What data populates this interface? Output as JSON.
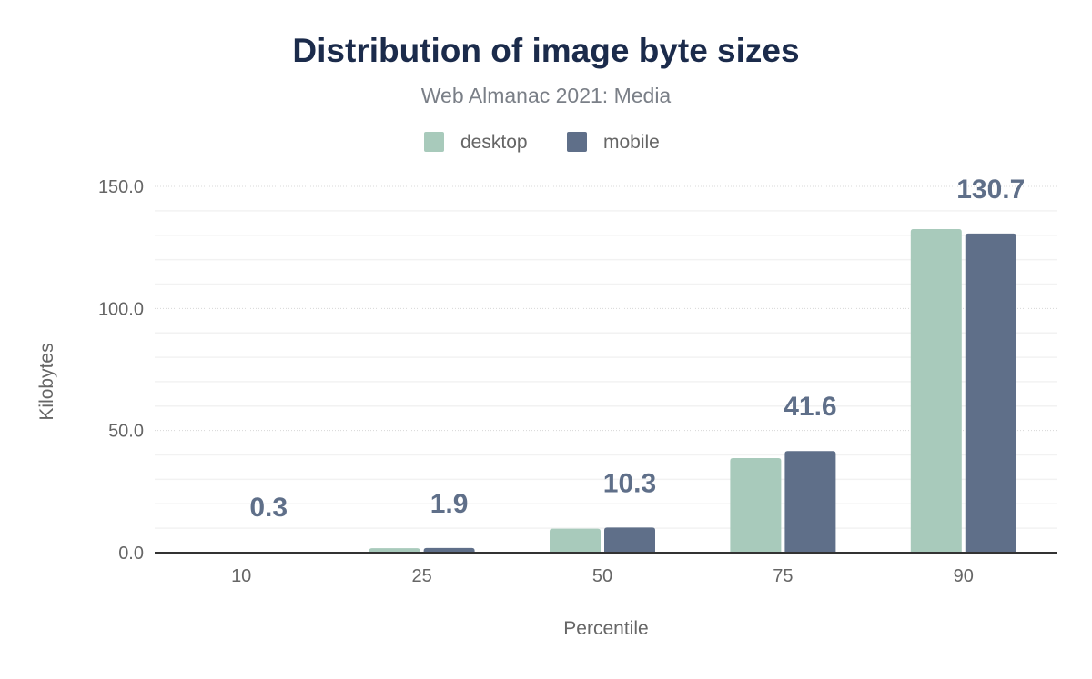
{
  "chart_data": {
    "type": "bar",
    "title": "Distribution of image byte sizes",
    "subtitle": "Web Almanac 2021: Media",
    "xlabel": "Percentile",
    "ylabel": "Kilobytes",
    "categories": [
      "10",
      "25",
      "50",
      "75",
      "90"
    ],
    "series": [
      {
        "name": "desktop",
        "color": "#a8cabb",
        "values": [
          0.3,
          1.8,
          9.8,
          38.7,
          132.5
        ]
      },
      {
        "name": "mobile",
        "color": "#5f6f89",
        "values": [
          0.3,
          1.9,
          10.3,
          41.6,
          130.7
        ]
      }
    ],
    "data_labels": {
      "series": "mobile",
      "values": [
        "0.3",
        "1.9",
        "10.3",
        "41.6",
        "130.7"
      ]
    },
    "ylim": [
      0,
      150
    ],
    "yticks": [
      "0.0",
      "50.0",
      "100.0",
      "150.0"
    ],
    "ytick_values": [
      0,
      50,
      100,
      150
    ],
    "minor_grid_step": 10,
    "grid": true,
    "legend": "top-center"
  }
}
